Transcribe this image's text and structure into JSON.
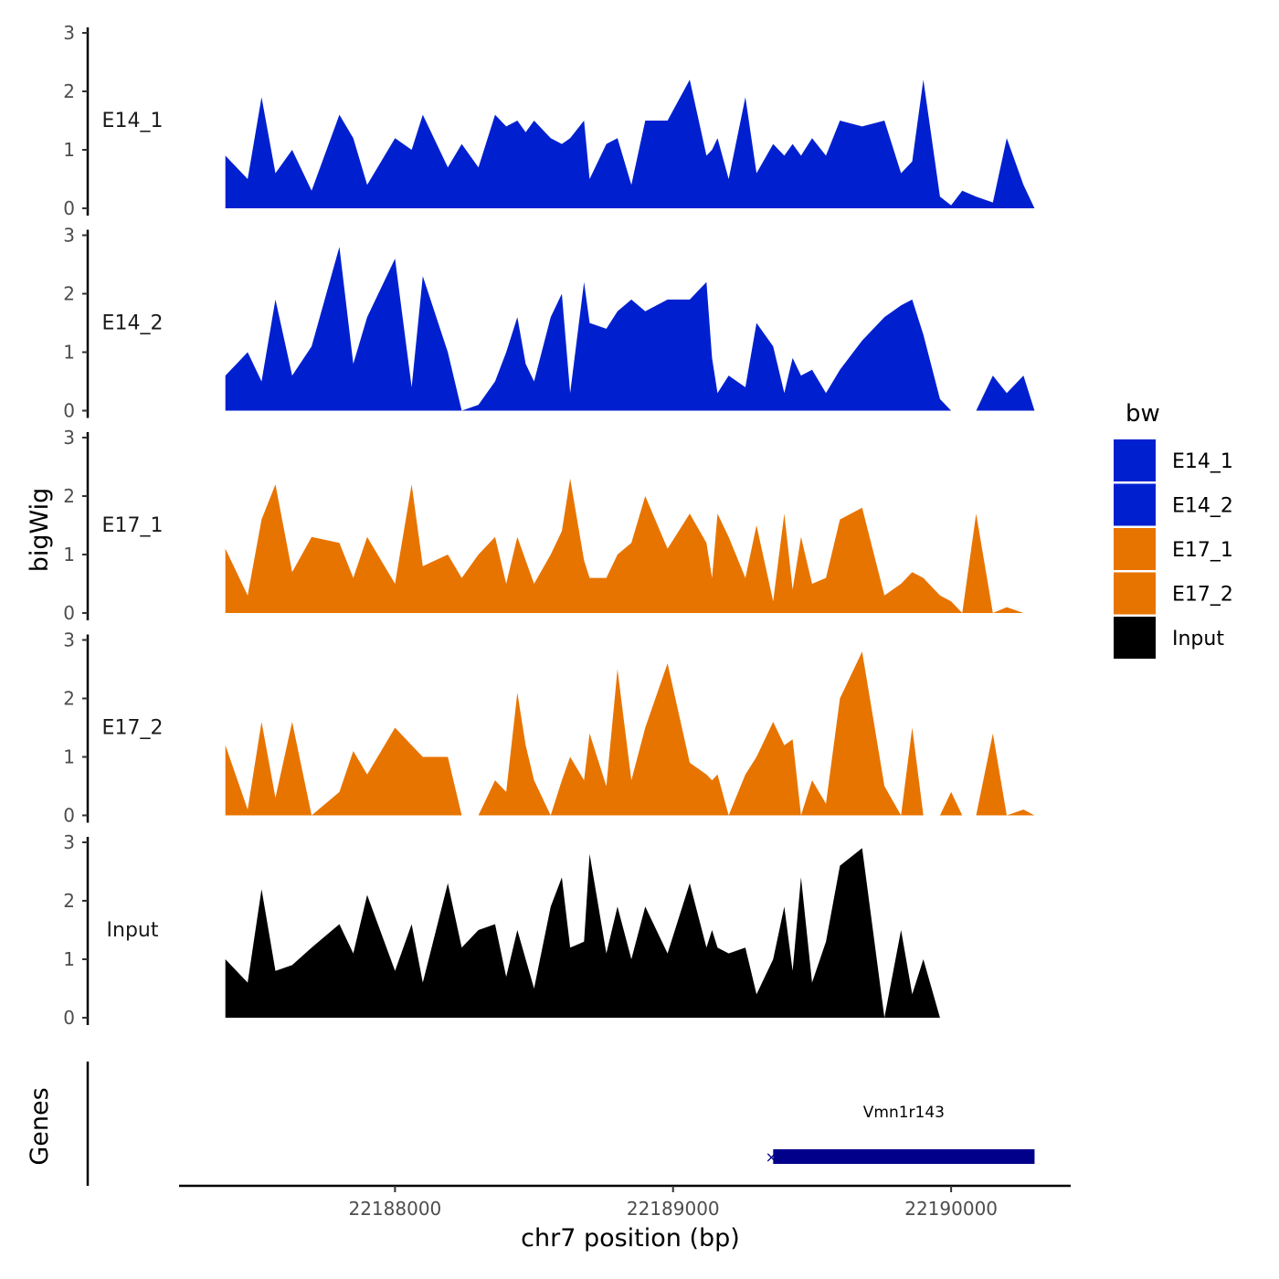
{
  "chart_data": {
    "type": "area",
    "title": "",
    "xlabel": "chr7 position (bp)",
    "ylabel": "bigWig",
    "gene_panel_label": "Genes",
    "xlim": [
      22187230,
      22190430
    ],
    "ylim": [
      0,
      3
    ],
    "x_ticks": [
      22188000,
      22189000,
      22190000
    ],
    "x_tick_labels": [
      "22188000",
      "22189000",
      "22190000"
    ],
    "y_ticks": [
      0,
      1,
      2,
      3
    ],
    "y_tick_labels": [
      "0",
      "1",
      "2",
      "3"
    ],
    "legend": {
      "title": "bw",
      "position": "right",
      "entries": [
        {
          "name": "E14_1",
          "color": "#0020D0"
        },
        {
          "name": "E14_2",
          "color": "#0020D0"
        },
        {
          "name": "E17_1",
          "color": "#E87400"
        },
        {
          "name": "E17_2",
          "color": "#E87400"
        },
        {
          "name": "Input",
          "color": "#000000"
        }
      ]
    },
    "x": [
      22187390,
      22187470,
      22187520,
      22187570,
      22187630,
      22187700,
      22187800,
      22187850,
      22187900,
      22188000,
      22188060,
      22188100,
      22188190,
      22188240,
      22188300,
      22188360,
      22188400,
      22188440,
      22188470,
      22188500,
      22188560,
      22188600,
      22188630,
      22188680,
      22188700,
      22188760,
      22188800,
      22188850,
      22188900,
      22188980,
      22189060,
      22189120,
      22189140,
      22189160,
      22189200,
      22189260,
      22189300,
      22189360,
      22189400,
      22189430,
      22189460,
      22189500,
      22189550,
      22189600,
      22189680,
      22189760,
      22189820,
      22189860,
      22189900,
      22189960,
      22190000,
      22190040,
      22190090,
      22190150,
      22190200,
      22190260,
      22190300
    ],
    "series": [
      {
        "name": "E14_1",
        "color": "#0020D0",
        "values": [
          0.9,
          0.5,
          1.9,
          0.6,
          1.0,
          0.3,
          1.6,
          1.2,
          0.4,
          1.2,
          1.0,
          1.6,
          0.7,
          1.1,
          0.7,
          1.6,
          1.4,
          1.5,
          1.3,
          1.5,
          1.2,
          1.1,
          1.2,
          1.5,
          0.5,
          1.1,
          1.2,
          0.4,
          1.5,
          1.5,
          2.2,
          0.9,
          1.0,
          1.2,
          0.5,
          1.9,
          0.6,
          1.1,
          0.9,
          1.1,
          0.9,
          1.2,
          0.9,
          1.5,
          1.4,
          1.5,
          0.6,
          0.8,
          2.2,
          0.2,
          0.05,
          0.3,
          0.2,
          0.1,
          1.2,
          0.4,
          0.0
        ]
      },
      {
        "name": "E14_2",
        "color": "#0020D0",
        "values": [
          0.6,
          1.0,
          0.5,
          1.9,
          0.6,
          1.1,
          2.8,
          0.8,
          1.6,
          2.6,
          0.4,
          2.3,
          1.0,
          0.0,
          0.1,
          0.5,
          1.0,
          1.6,
          0.8,
          0.5,
          1.6,
          2.0,
          0.3,
          2.2,
          1.5,
          1.4,
          1.7,
          1.9,
          1.7,
          1.9,
          1.9,
          2.2,
          0.9,
          0.3,
          0.6,
          0.4,
          1.5,
          1.1,
          0.3,
          0.9,
          0.6,
          0.7,
          0.3,
          0.7,
          1.2,
          1.6,
          1.8,
          1.9,
          1.3,
          0.2,
          0.0,
          0.0,
          0.0,
          0.6,
          0.3,
          0.6,
          0.0
        ]
      },
      {
        "name": "E17_1",
        "color": "#E87400",
        "values": [
          1.1,
          0.3,
          1.6,
          2.2,
          0.7,
          1.3,
          1.2,
          0.6,
          1.3,
          0.5,
          2.2,
          0.8,
          1.0,
          0.6,
          1.0,
          1.3,
          0.5,
          1.3,
          0.9,
          0.5,
          1.0,
          1.4,
          2.3,
          0.9,
          0.6,
          0.6,
          1.0,
          1.2,
          2.0,
          1.1,
          1.7,
          1.2,
          0.6,
          1.7,
          1.3,
          0.6,
          1.5,
          0.2,
          1.7,
          0.4,
          1.3,
          0.5,
          0.6,
          1.6,
          1.8,
          0.3,
          0.5,
          0.7,
          0.6,
          0.3,
          0.2,
          0.0,
          1.7,
          0.0,
          0.1,
          0.0,
          0.0
        ]
      },
      {
        "name": "E17_2",
        "color": "#E87400",
        "values": [
          1.2,
          0.1,
          1.6,
          0.3,
          1.6,
          0.0,
          0.4,
          1.1,
          0.7,
          1.5,
          1.2,
          1.0,
          1.0,
          0.0,
          0.0,
          0.6,
          0.4,
          2.1,
          1.2,
          0.6,
          0.0,
          0.6,
          1.0,
          0.6,
          1.4,
          0.5,
          2.5,
          0.6,
          1.5,
          2.6,
          0.9,
          0.7,
          0.6,
          0.7,
          0.0,
          0.7,
          1.0,
          1.6,
          1.2,
          1.3,
          0.0,
          0.6,
          0.2,
          2.0,
          2.8,
          0.5,
          0.0,
          1.5,
          0.0,
          0.0,
          0.4,
          0.0,
          0.0,
          1.4,
          0.0,
          0.1,
          0.0
        ]
      },
      {
        "name": "Input",
        "color": "#000000",
        "values": [
          1.0,
          0.6,
          2.2,
          0.8,
          0.9,
          1.2,
          1.6,
          1.1,
          2.1,
          0.8,
          1.6,
          0.6,
          2.3,
          1.2,
          1.5,
          1.6,
          0.7,
          1.5,
          1.0,
          0.5,
          1.9,
          2.4,
          1.2,
          1.3,
          2.8,
          1.1,
          1.9,
          1.0,
          1.9,
          1.1,
          2.3,
          1.2,
          1.5,
          1.2,
          1.1,
          1.2,
          0.4,
          1.0,
          1.9,
          0.8,
          2.4,
          0.6,
          1.3,
          2.6,
          2.9,
          0.0,
          1.5,
          0.4,
          1.0,
          0.0,
          0.0,
          0.0,
          0.0,
          0.0,
          0.0,
          0.0,
          0.0
        ]
      }
    ],
    "genes": [
      {
        "name": "Vmn1r143",
        "start": 22189360,
        "end": 22190300,
        "strand": "-",
        "color": "#00008B"
      }
    ]
  }
}
